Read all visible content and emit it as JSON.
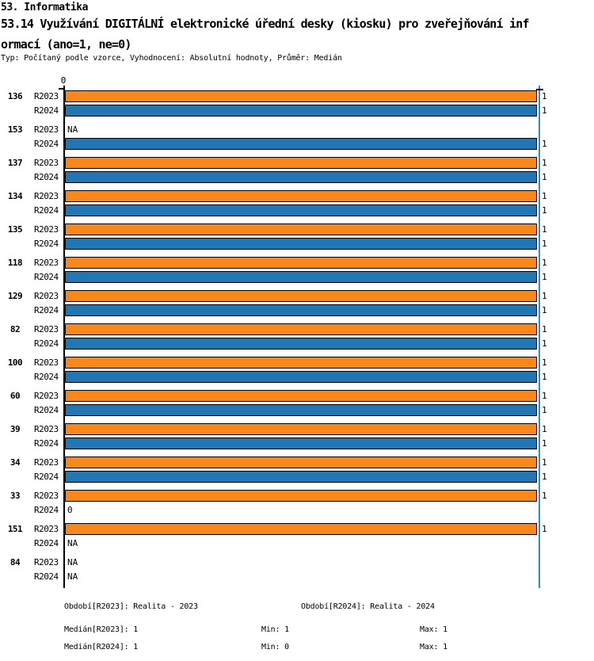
{
  "header": {
    "line1": "53. Informatika",
    "line2": "53.14 Využívání DIGITÁLNÍ elektronické úřední desky (kiosku) pro zveřejňování inf",
    "line3": "ormací (ano=1, ne=0)",
    "meta": "Typ: Počítaný podle vzorce, Vyhodnocení: Absolutní hodnoty, Průměr: Medián"
  },
  "chart_data": {
    "type": "bar",
    "orientation": "horizontal",
    "title": "53.14 Využívání DIGITÁLNÍ elektronické úřední desky (kiosku) pro zveřejňování informací (ano=1, ne=0)",
    "categories": [
      "136",
      "153",
      "137",
      "134",
      "135",
      "118",
      "129",
      "82",
      "100",
      "60",
      "39",
      "34",
      "33",
      "151",
      "84"
    ],
    "series": [
      {
        "name": "R2023",
        "color": "#fa8719",
        "values": [
          1,
          "NA",
          1,
          1,
          1,
          1,
          1,
          1,
          1,
          1,
          1,
          1,
          1,
          1,
          "NA"
        ]
      },
      {
        "name": "R2024",
        "color": "#2077b4",
        "values": [
          1,
          1,
          1,
          1,
          1,
          1,
          1,
          1,
          1,
          1,
          1,
          1,
          0,
          "NA",
          "NA"
        ]
      }
    ],
    "xlim": [
      0,
      1
    ],
    "x_tick_labels": [
      "0"
    ],
    "missing_value_text": "NA",
    "grid_on": false,
    "max_gridline": {
      "value": 1,
      "color": "#3c86c0"
    },
    "axis_color": "#000000",
    "legend_position": "none"
  },
  "footer": {
    "period_2023": "Období[R2023]: Realita - 2023",
    "period_2024": "Období[R2024]: Realita - 2024",
    "median_2023": "Medián[R2023]: 1",
    "min_2023": "Min: 1",
    "max_2023": "Max: 1",
    "median_2024": "Medián[R2024]: 1",
    "min_2024": "Min: 0",
    "max_2024": "Max: 1"
  },
  "colors": {
    "background": "#ffffff",
    "bar_r2023": "#fa8719",
    "bar_r2024": "#2077b4",
    "max_line": "#3c86c0",
    "text": "#000000"
  }
}
